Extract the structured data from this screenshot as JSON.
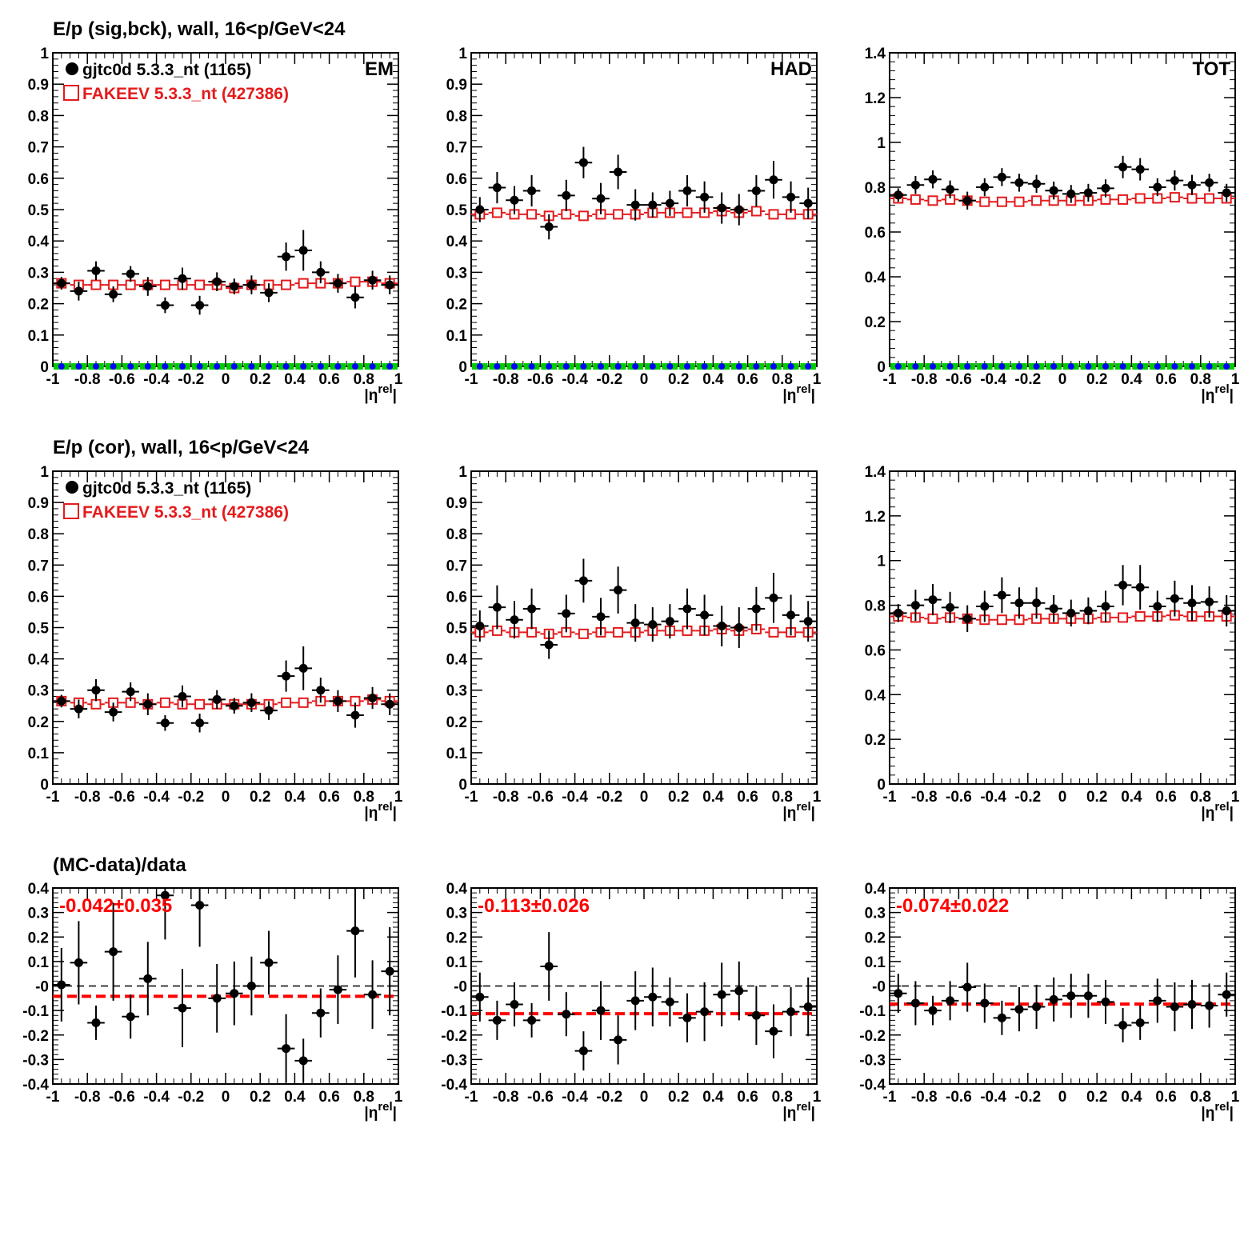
{
  "colors": {
    "data": "#000000",
    "mc": "#e41a1c",
    "sig": "#00cc00",
    "bck": "#0000ff",
    "fit": "#ff0000"
  },
  "rows": [
    {
      "title": "E/p (sig,bck), wall, 16<p/GeV<24"
    },
    {
      "title": "E/p (cor), wall, 16<p/GeV<24"
    },
    {
      "title": "(MC-data)/data"
    }
  ],
  "legend": {
    "data_label": "gjtc0d 5.3.3_nt (1165)",
    "mc_label": "FAKEEV 5.3.3_nt (427386)"
  },
  "chart_data": [
    {
      "row": 0,
      "col": 0,
      "type": "scatter",
      "tag": "EM",
      "xlabel": "|η^rel|",
      "xlim": [
        -1,
        1
      ],
      "ylim": [
        0,
        1
      ],
      "yticks": [
        "0",
        "0.1",
        "0.2",
        "0.3",
        "0.4",
        "0.5",
        "0.6",
        "0.7",
        "0.8",
        "0.9",
        "1"
      ],
      "xticks": [
        "-1",
        "-0.8",
        "-0.6",
        "-0.4",
        "-0.2",
        "0",
        "0.2",
        "0.4",
        "0.6",
        "0.8",
        "1"
      ],
      "legend": true,
      "x": [
        -0.95,
        -0.85,
        -0.75,
        -0.65,
        -0.55,
        -0.45,
        -0.35,
        -0.25,
        -0.15,
        -0.05,
        0.05,
        0.15,
        0.25,
        0.35,
        0.45,
        0.55,
        0.65,
        0.75,
        0.85,
        0.95
      ],
      "data": [
        0.265,
        0.24,
        0.305,
        0.23,
        0.295,
        0.255,
        0.195,
        0.28,
        0.195,
        0.27,
        0.255,
        0.26,
        0.235,
        0.35,
        0.37,
        0.3,
        0.265,
        0.22,
        0.275,
        0.26
      ],
      "data_err": [
        0.02,
        0.03,
        0.03,
        0.025,
        0.025,
        0.03,
        0.025,
        0.035,
        0.03,
        0.03,
        0.025,
        0.03,
        0.03,
        0.045,
        0.065,
        0.035,
        0.03,
        0.035,
        0.03,
        0.03
      ],
      "mc": [
        0.265,
        0.26,
        0.26,
        0.26,
        0.26,
        0.26,
        0.26,
        0.26,
        0.26,
        0.26,
        0.25,
        0.26,
        0.26,
        0.26,
        0.265,
        0.265,
        0.265,
        0.27,
        0.27,
        0.265
      ],
      "sig": [
        0,
        0,
        0,
        0,
        0,
        0,
        0,
        0,
        0,
        0,
        0,
        0,
        0,
        0,
        0,
        0,
        0,
        0,
        0,
        0
      ],
      "bck": [
        0,
        0,
        0,
        0,
        0,
        0,
        0,
        0,
        0,
        0,
        0,
        0,
        0,
        0,
        0,
        0,
        0,
        0,
        0,
        0
      ]
    },
    {
      "row": 0,
      "col": 1,
      "type": "scatter",
      "tag": "HAD",
      "xlabel": "|η^rel|",
      "xlim": [
        -1,
        1
      ],
      "ylim": [
        0,
        1
      ],
      "yticks": [
        "0",
        "0.1",
        "0.2",
        "0.3",
        "0.4",
        "0.5",
        "0.6",
        "0.7",
        "0.8",
        "0.9",
        "1"
      ],
      "xticks": [
        "-1",
        "-0.8",
        "-0.6",
        "-0.4",
        "-0.2",
        "0",
        "0.2",
        "0.4",
        "0.6",
        "0.8",
        "1"
      ],
      "legend": false,
      "x": [
        -0.95,
        -0.85,
        -0.75,
        -0.65,
        -0.55,
        -0.45,
        -0.35,
        -0.25,
        -0.15,
        -0.05,
        0.05,
        0.15,
        0.25,
        0.35,
        0.45,
        0.55,
        0.65,
        0.75,
        0.85,
        0.95
      ],
      "data": [
        0.5,
        0.57,
        0.53,
        0.56,
        0.445,
        0.545,
        0.65,
        0.535,
        0.62,
        0.515,
        0.515,
        0.52,
        0.56,
        0.54,
        0.505,
        0.5,
        0.56,
        0.595,
        0.54,
        0.52
      ],
      "data_err": [
        0.04,
        0.05,
        0.045,
        0.05,
        0.04,
        0.05,
        0.05,
        0.05,
        0.055,
        0.05,
        0.04,
        0.04,
        0.05,
        0.05,
        0.05,
        0.05,
        0.05,
        0.06,
        0.05,
        0.05
      ],
      "mc": [
        0.485,
        0.49,
        0.485,
        0.485,
        0.48,
        0.485,
        0.48,
        0.485,
        0.485,
        0.485,
        0.49,
        0.49,
        0.49,
        0.49,
        0.495,
        0.49,
        0.495,
        0.485,
        0.485,
        0.485
      ],
      "sig": [
        0,
        0,
        0,
        0,
        0,
        0,
        0,
        0,
        0,
        0,
        0,
        0,
        0,
        0,
        0,
        0,
        0,
        0,
        0,
        0
      ],
      "bck": [
        0,
        0,
        0,
        0,
        0,
        0,
        0,
        0,
        0,
        0,
        0,
        0,
        0,
        0,
        0,
        0,
        0,
        0,
        0,
        0
      ]
    },
    {
      "row": 0,
      "col": 2,
      "type": "scatter",
      "tag": "TOT",
      "xlabel": "|η^rel|",
      "xlim": [
        -1,
        1
      ],
      "ylim": [
        0,
        1.4
      ],
      "yticks": [
        "0",
        "0.2",
        "0.4",
        "0.6",
        "0.8",
        "1",
        "1.2",
        "1.4"
      ],
      "xticks": [
        "-1",
        "-0.8",
        "-0.6",
        "-0.4",
        "-0.2",
        "0",
        "0.2",
        "0.4",
        "0.6",
        "0.8",
        "1"
      ],
      "legend": false,
      "x": [
        -0.95,
        -0.85,
        -0.75,
        -0.65,
        -0.55,
        -0.45,
        -0.35,
        -0.25,
        -0.15,
        -0.05,
        0.05,
        0.15,
        0.25,
        0.35,
        0.45,
        0.55,
        0.65,
        0.75,
        0.85,
        0.95
      ],
      "data": [
        0.765,
        0.81,
        0.835,
        0.79,
        0.74,
        0.8,
        0.845,
        0.82,
        0.815,
        0.785,
        0.77,
        0.775,
        0.795,
        0.89,
        0.88,
        0.8,
        0.83,
        0.81,
        0.82,
        0.775
      ],
      "data_err": [
        0.03,
        0.04,
        0.04,
        0.04,
        0.04,
        0.04,
        0.04,
        0.04,
        0.04,
        0.04,
        0.04,
        0.04,
        0.04,
        0.05,
        0.05,
        0.04,
        0.045,
        0.045,
        0.04,
        0.04
      ],
      "mc": [
        0.75,
        0.745,
        0.74,
        0.745,
        0.74,
        0.735,
        0.735,
        0.735,
        0.74,
        0.74,
        0.74,
        0.74,
        0.745,
        0.745,
        0.75,
        0.75,
        0.755,
        0.75,
        0.75,
        0.75
      ],
      "sig": [
        0,
        0,
        0,
        0,
        0,
        0,
        0,
        0,
        0,
        0,
        0,
        0,
        0,
        0,
        0,
        0,
        0,
        0,
        0,
        0
      ],
      "bck": [
        0,
        0,
        0,
        0,
        0,
        0,
        0,
        0,
        0,
        0,
        0,
        0,
        0,
        0,
        0,
        0,
        0,
        0,
        0,
        0
      ]
    },
    {
      "row": 1,
      "col": 0,
      "type": "scatter",
      "tag": "",
      "xlabel": "|η^rel|",
      "xlim": [
        -1,
        1
      ],
      "ylim": [
        0,
        1
      ],
      "yticks": [
        "0",
        "0.1",
        "0.2",
        "0.3",
        "0.4",
        "0.5",
        "0.6",
        "0.7",
        "0.8",
        "0.9",
        "1"
      ],
      "xticks": [
        "-1",
        "-0.8",
        "-0.6",
        "-0.4",
        "-0.2",
        "0",
        "0.2",
        "0.4",
        "0.6",
        "0.8",
        "1"
      ],
      "legend": true,
      "x": [
        -0.95,
        -0.85,
        -0.75,
        -0.65,
        -0.55,
        -0.45,
        -0.35,
        -0.25,
        -0.15,
        -0.05,
        0.05,
        0.15,
        0.25,
        0.35,
        0.45,
        0.55,
        0.65,
        0.75,
        0.85,
        0.95
      ],
      "data": [
        0.265,
        0.24,
        0.3,
        0.23,
        0.295,
        0.255,
        0.195,
        0.28,
        0.195,
        0.27,
        0.25,
        0.26,
        0.235,
        0.345,
        0.37,
        0.3,
        0.265,
        0.22,
        0.275,
        0.255
      ],
      "data_err": [
        0.02,
        0.03,
        0.035,
        0.03,
        0.03,
        0.035,
        0.025,
        0.035,
        0.03,
        0.03,
        0.025,
        0.03,
        0.03,
        0.05,
        0.07,
        0.04,
        0.035,
        0.04,
        0.035,
        0.035
      ],
      "mc": [
        0.265,
        0.26,
        0.255,
        0.26,
        0.26,
        0.255,
        0.26,
        0.255,
        0.255,
        0.255,
        0.255,
        0.255,
        0.255,
        0.26,
        0.26,
        0.265,
        0.265,
        0.265,
        0.27,
        0.265
      ]
    },
    {
      "row": 1,
      "col": 1,
      "type": "scatter",
      "tag": "",
      "xlabel": "|η^rel|",
      "xlim": [
        -1,
        1
      ],
      "ylim": [
        0,
        1
      ],
      "yticks": [
        "0",
        "0.1",
        "0.2",
        "0.3",
        "0.4",
        "0.5",
        "0.6",
        "0.7",
        "0.8",
        "0.9",
        "1"
      ],
      "xticks": [
        "-1",
        "-0.8",
        "-0.6",
        "-0.4",
        "-0.2",
        "0",
        "0.2",
        "0.4",
        "0.6",
        "0.8",
        "1"
      ],
      "legend": false,
      "x": [
        -0.95,
        -0.85,
        -0.75,
        -0.65,
        -0.55,
        -0.45,
        -0.35,
        -0.25,
        -0.15,
        -0.05,
        0.05,
        0.15,
        0.25,
        0.35,
        0.45,
        0.55,
        0.65,
        0.75,
        0.85,
        0.95
      ],
      "data": [
        0.505,
        0.565,
        0.525,
        0.56,
        0.445,
        0.545,
        0.65,
        0.535,
        0.62,
        0.515,
        0.51,
        0.52,
        0.56,
        0.54,
        0.505,
        0.5,
        0.56,
        0.595,
        0.54,
        0.52
      ],
      "data_err": [
        0.05,
        0.07,
        0.06,
        0.065,
        0.045,
        0.06,
        0.07,
        0.06,
        0.075,
        0.06,
        0.055,
        0.055,
        0.065,
        0.065,
        0.065,
        0.065,
        0.07,
        0.08,
        0.065,
        0.065
      ],
      "mc": [
        0.485,
        0.49,
        0.485,
        0.485,
        0.48,
        0.485,
        0.48,
        0.485,
        0.485,
        0.485,
        0.49,
        0.49,
        0.49,
        0.49,
        0.495,
        0.49,
        0.495,
        0.485,
        0.485,
        0.485
      ]
    },
    {
      "row": 1,
      "col": 2,
      "type": "scatter",
      "tag": "",
      "xlabel": "|η^rel|",
      "xlim": [
        -1,
        1
      ],
      "ylim": [
        0,
        1.4
      ],
      "yticks": [
        "0",
        "0.2",
        "0.4",
        "0.6",
        "0.8",
        "1",
        "1.2",
        "1.4"
      ],
      "xticks": [
        "-1",
        "-0.8",
        "-0.6",
        "-0.4",
        "-0.2",
        "0",
        "0.2",
        "0.4",
        "0.6",
        "0.8",
        "1"
      ],
      "legend": false,
      "x": [
        -0.95,
        -0.85,
        -0.75,
        -0.65,
        -0.55,
        -0.45,
        -0.35,
        -0.25,
        -0.15,
        -0.05,
        0.05,
        0.15,
        0.25,
        0.35,
        0.45,
        0.55,
        0.65,
        0.75,
        0.85,
        0.95
      ],
      "data": [
        0.765,
        0.8,
        0.825,
        0.79,
        0.74,
        0.795,
        0.845,
        0.81,
        0.81,
        0.785,
        0.765,
        0.775,
        0.795,
        0.89,
        0.88,
        0.795,
        0.83,
        0.81,
        0.815,
        0.775
      ],
      "data_err": [
        0.04,
        0.07,
        0.07,
        0.07,
        0.06,
        0.07,
        0.08,
        0.07,
        0.07,
        0.06,
        0.06,
        0.06,
        0.07,
        0.09,
        0.1,
        0.07,
        0.08,
        0.08,
        0.07,
        0.07
      ],
      "mc": [
        0.75,
        0.745,
        0.74,
        0.745,
        0.74,
        0.735,
        0.735,
        0.735,
        0.74,
        0.74,
        0.74,
        0.74,
        0.745,
        0.745,
        0.75,
        0.75,
        0.755,
        0.75,
        0.75,
        0.75
      ]
    },
    {
      "row": 2,
      "col": 0,
      "type": "scatter",
      "tag": "",
      "xlabel": "|η^rel|",
      "xlim": [
        -1,
        1
      ],
      "ylim": [
        -0.4,
        0.4
      ],
      "yticks": [
        "-0.4",
        "-0.3",
        "-0.2",
        "-0.1",
        "-0",
        "0.1",
        "0.2",
        "0.3",
        "0.4"
      ],
      "xticks": [
        "-1",
        "-0.8",
        "-0.6",
        "-0.4",
        "-0.2",
        "0",
        "0.2",
        "0.4",
        "0.6",
        "0.8",
        "1"
      ],
      "stat": "-0.042±0.035",
      "fit": -0.042,
      "x": [
        -0.95,
        -0.85,
        -0.75,
        -0.65,
        -0.55,
        -0.45,
        -0.35,
        -0.25,
        -0.15,
        -0.05,
        0.05,
        0.15,
        0.25,
        0.35,
        0.45,
        0.55,
        0.65,
        0.75,
        0.85,
        0.95
      ],
      "data": [
        0.005,
        0.095,
        -0.15,
        0.14,
        -0.125,
        0.03,
        0.37,
        -0.09,
        0.33,
        -0.05,
        -0.03,
        0.0,
        0.095,
        -0.255,
        -0.305,
        -0.11,
        -0.015,
        0.225,
        -0.035,
        0.06
      ],
      "data_err": [
        0.15,
        0.17,
        0.07,
        0.2,
        0.09,
        0.15,
        0.18,
        0.16,
        0.17,
        0.14,
        0.13,
        0.12,
        0.13,
        0.14,
        0.09,
        0.1,
        0.14,
        0.19,
        0.14,
        0.18
      ]
    },
    {
      "row": 2,
      "col": 1,
      "type": "scatter",
      "tag": "",
      "xlabel": "|η^rel|",
      "xlim": [
        -1,
        1
      ],
      "ylim": [
        -0.4,
        0.4
      ],
      "yticks": [
        "-0.4",
        "-0.3",
        "-0.2",
        "-0.1",
        "-0",
        "0.1",
        "0.2",
        "0.3",
        "0.4"
      ],
      "xticks": [
        "-1",
        "-0.8",
        "-0.6",
        "-0.4",
        "-0.2",
        "0",
        "0.2",
        "0.4",
        "0.6",
        "0.8",
        "1"
      ],
      "stat": "-0.113±0.026",
      "fit": -0.113,
      "x": [
        -0.95,
        -0.85,
        -0.75,
        -0.65,
        -0.55,
        -0.45,
        -0.35,
        -0.25,
        -0.15,
        -0.05,
        0.05,
        0.15,
        0.25,
        0.35,
        0.45,
        0.55,
        0.65,
        0.75,
        0.85,
        0.95
      ],
      "data": [
        -0.045,
        -0.14,
        -0.075,
        -0.14,
        0.08,
        -0.115,
        -0.265,
        -0.1,
        -0.22,
        -0.06,
        -0.045,
        -0.065,
        -0.13,
        -0.105,
        -0.035,
        -0.02,
        -0.12,
        -0.185,
        -0.105,
        -0.085
      ],
      "data_err": [
        0.1,
        0.08,
        0.09,
        0.07,
        0.14,
        0.09,
        0.08,
        0.12,
        0.1,
        0.12,
        0.12,
        0.1,
        0.1,
        0.12,
        0.13,
        0.12,
        0.12,
        0.11,
        0.1,
        0.12
      ]
    },
    {
      "row": 2,
      "col": 2,
      "type": "scatter",
      "tag": "",
      "xlabel": "|η^rel|",
      "xlim": [
        -1,
        1
      ],
      "ylim": [
        -0.4,
        0.4
      ],
      "yticks": [
        "-0.4",
        "-0.3",
        "-0.2",
        "-0.1",
        "-0",
        "0.1",
        "0.2",
        "0.3",
        "0.4"
      ],
      "xticks": [
        "-1",
        "-0.8",
        "-0.6",
        "-0.4",
        "-0.2",
        "0",
        "0.2",
        "0.4",
        "0.6",
        "0.8",
        "1"
      ],
      "stat": "-0.074±0.022",
      "fit": -0.074,
      "x": [
        -0.95,
        -0.85,
        -0.75,
        -0.65,
        -0.55,
        -0.45,
        -0.35,
        -0.25,
        -0.15,
        -0.05,
        0.05,
        0.15,
        0.25,
        0.35,
        0.45,
        0.55,
        0.65,
        0.75,
        0.85,
        0.95
      ],
      "data": [
        -0.03,
        -0.07,
        -0.1,
        -0.06,
        -0.005,
        -0.07,
        -0.13,
        -0.095,
        -0.085,
        -0.055,
        -0.04,
        -0.04,
        -0.065,
        -0.16,
        -0.15,
        -0.06,
        -0.085,
        -0.075,
        -0.08,
        -0.035
      ],
      "data_err": [
        0.08,
        0.09,
        0.06,
        0.08,
        0.1,
        0.08,
        0.07,
        0.09,
        0.09,
        0.09,
        0.09,
        0.09,
        0.09,
        0.07,
        0.07,
        0.09,
        0.1,
        0.1,
        0.09,
        0.09
      ]
    }
  ]
}
